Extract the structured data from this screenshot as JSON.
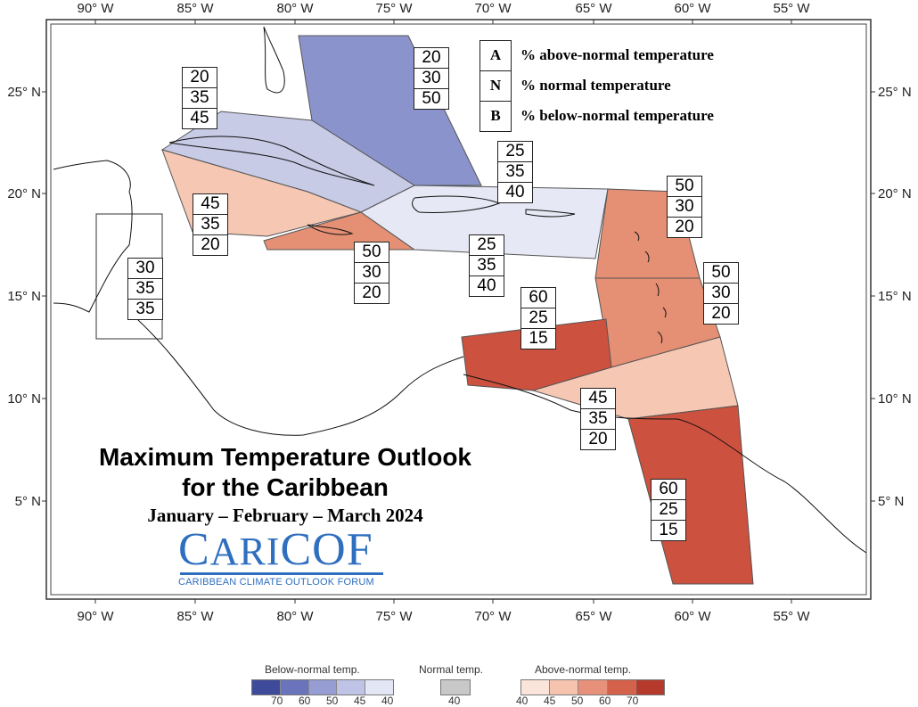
{
  "map": {
    "lon_labels": [
      "90° W",
      "85° W",
      "80° W",
      "75° W",
      "70° W",
      "65° W",
      "60° W",
      "55° W"
    ],
    "lat_labels_left": [
      "25° N",
      "20° N",
      "15° N",
      "10° N",
      "5° N"
    ],
    "lat_labels_right": [
      "25° N",
      "20° N",
      "15° N",
      "10° N",
      "5° N"
    ]
  },
  "key": {
    "rows": [
      {
        "letter": "A",
        "text": "% above-normal temperature"
      },
      {
        "letter": "N",
        "text": "% normal temperature"
      },
      {
        "letter": "B",
        "text": "% below-normal temperature"
      }
    ]
  },
  "regions": [
    {
      "id": "bahamas",
      "color": "#8b93cc",
      "probs": [
        "20",
        "30",
        "50"
      ]
    },
    {
      "id": "cuba",
      "color": "#c7cbe6",
      "probs": [
        "20",
        "35",
        "45"
      ]
    },
    {
      "id": "cayman-west",
      "color": "#f6c7b2",
      "probs": [
        "45",
        "35",
        "20"
      ]
    },
    {
      "id": "jamaica",
      "color": "#e58f74",
      "probs": [
        "50",
        "30",
        "20"
      ]
    },
    {
      "id": "hispaniola-north",
      "color": "#e6e8f5",
      "probs": [
        "25",
        "35",
        "40"
      ]
    },
    {
      "id": "hispaniola-south",
      "color": "#e6e8f5",
      "probs": [
        "25",
        "35",
        "40"
      ]
    },
    {
      "id": "belize",
      "color": "#ffffff",
      "probs": [
        "30",
        "35",
        "35"
      ]
    },
    {
      "id": "leeward-north",
      "color": "#e58f74",
      "probs": [
        "50",
        "30",
        "20"
      ]
    },
    {
      "id": "windward",
      "color": "#e58f74",
      "probs": [
        "50",
        "30",
        "20"
      ]
    },
    {
      "id": "abc-islands",
      "color": "#cc513f",
      "probs": [
        "60",
        "25",
        "15"
      ]
    },
    {
      "id": "trinidad",
      "color": "#f6c7b2",
      "probs": [
        "45",
        "35",
        "20"
      ]
    },
    {
      "id": "guianas",
      "color": "#cc513f",
      "probs": [
        "60",
        "25",
        "15"
      ]
    }
  ],
  "title": {
    "line1": "Maximum Temperature Outlook",
    "line2": "for the Caribbean",
    "period": "January – February – March 2024"
  },
  "logo": {
    "word": "CARICOF",
    "subtitle": "CARIBBEAN CLIMATE OUTLOOK FORUM"
  },
  "colorbar": {
    "below_label": "Below-normal temp.",
    "normal_label": "Normal temp.",
    "above_label": "Above-normal temp.",
    "below_colors": [
      "#3d4b9a",
      "#6a74bd",
      "#959dd3",
      "#bfc4e6",
      "#e3e6f5"
    ],
    "below_ticks": [
      "70",
      "60",
      "50",
      "45",
      "40"
    ],
    "normal_color": "#c8c8c8",
    "normal_ticks": [
      "40"
    ],
    "above_colors": [
      "#fbe4da",
      "#f6c4ae",
      "#e8917a",
      "#d4614a",
      "#b53a2c"
    ],
    "above_ticks": [
      "40",
      "45",
      "50",
      "60",
      "70"
    ]
  }
}
